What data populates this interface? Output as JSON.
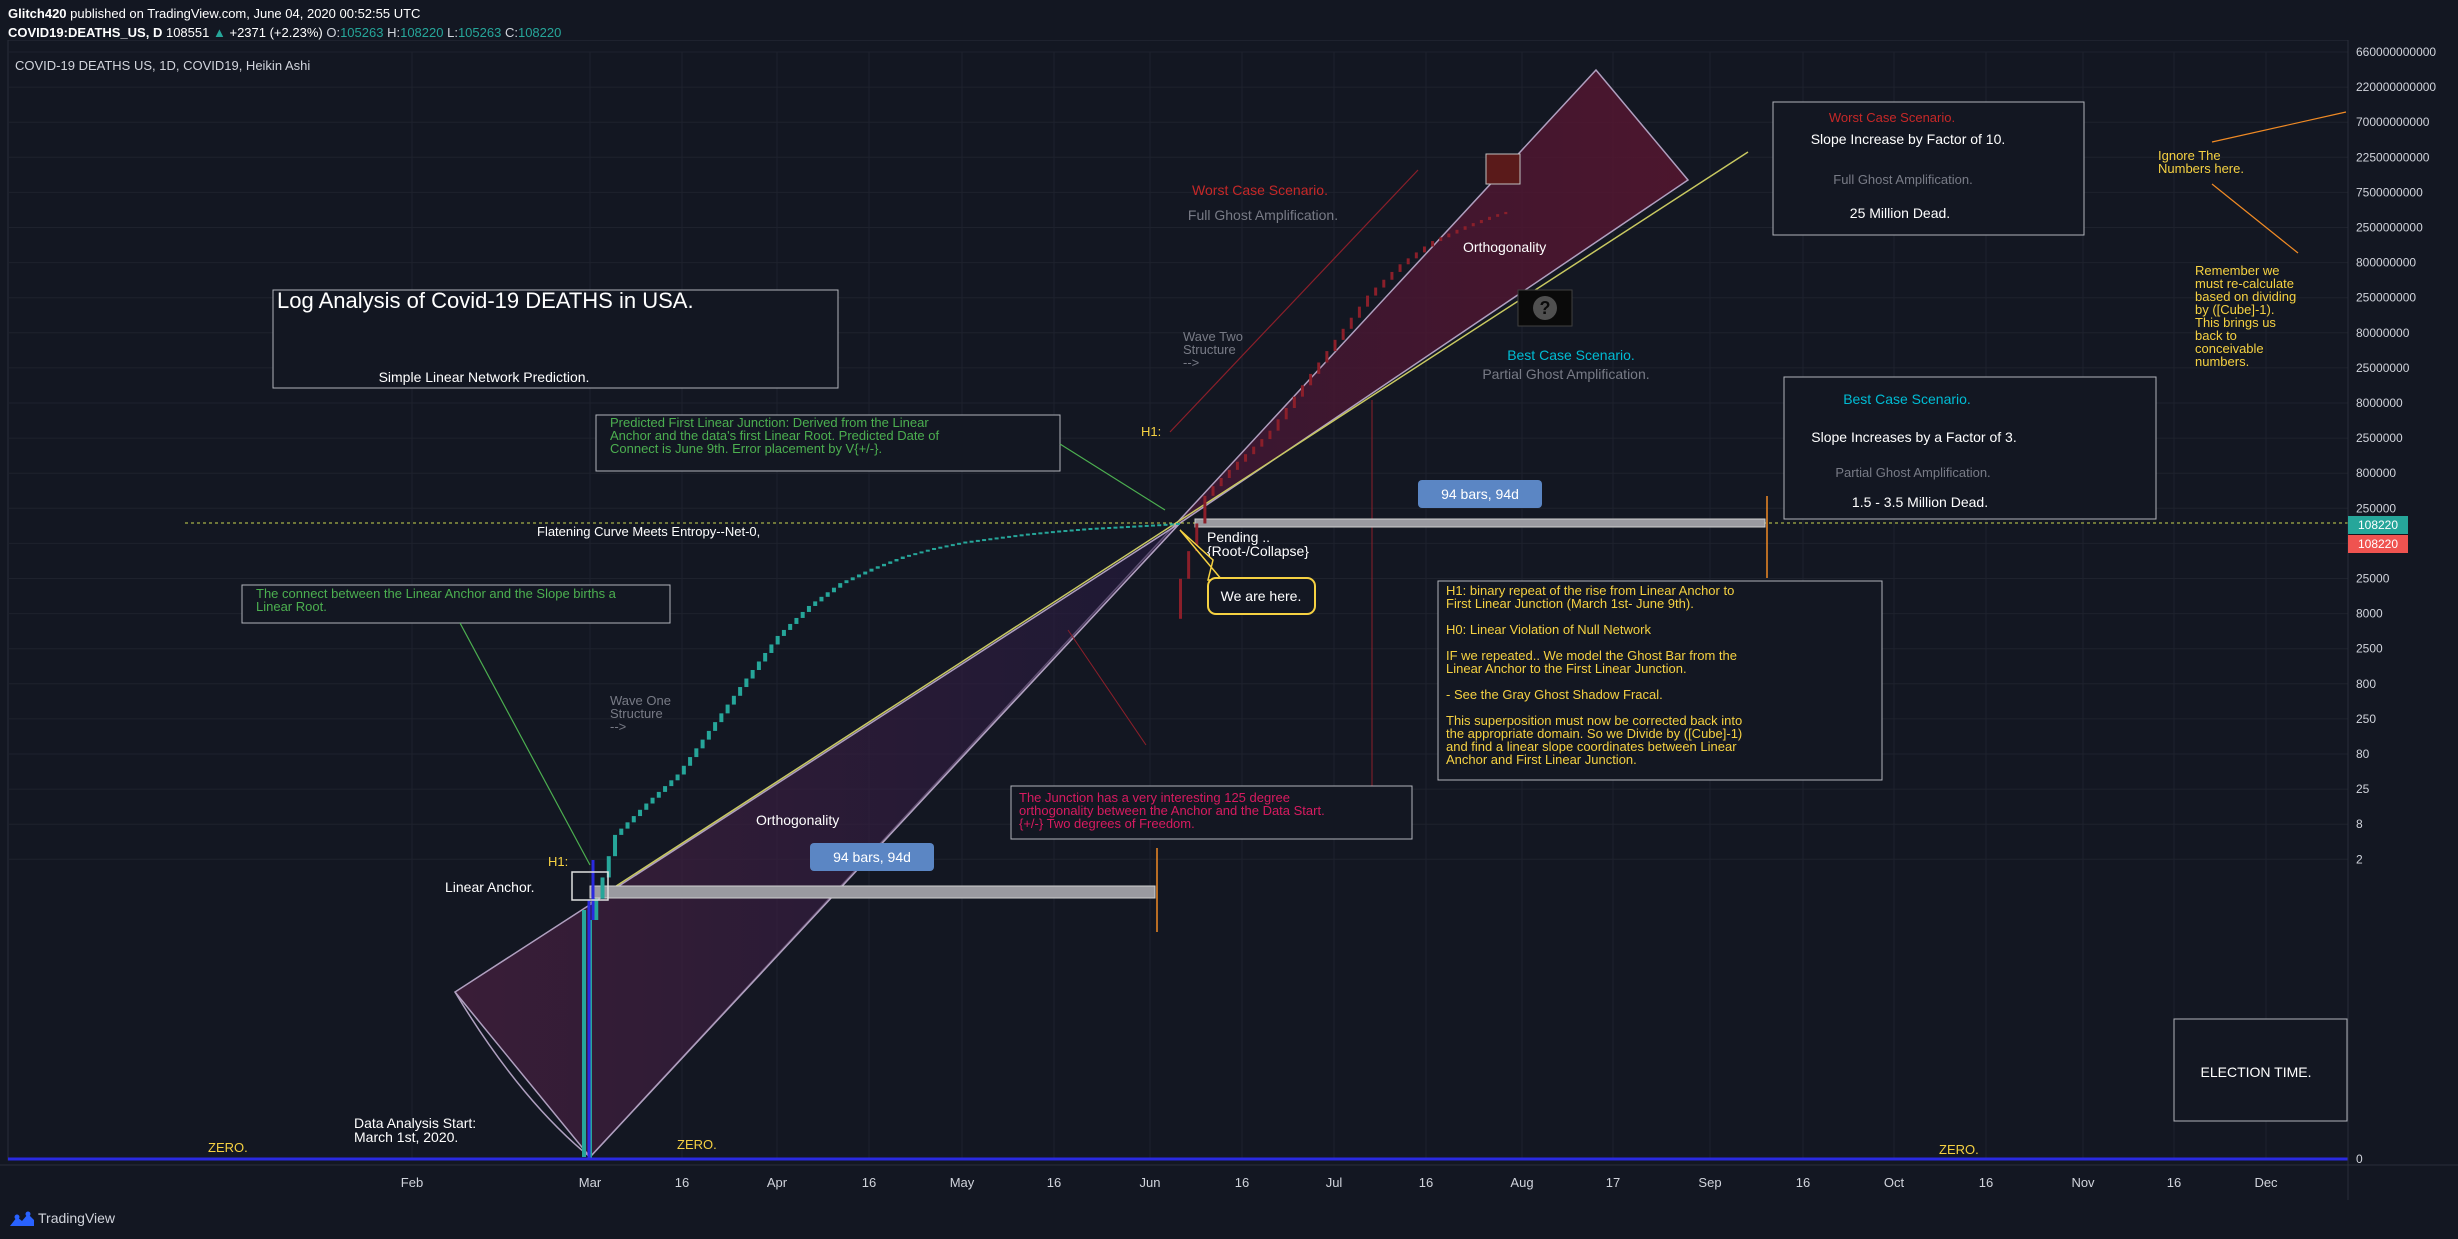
{
  "header": {
    "publisher": "Glitch420",
    "published_text": "published on TradingView.com, June 04, 2020 00:52:55 UTC",
    "symbol": "COVID19:DEATHS_US, D",
    "last": "108551",
    "change": "+2371 (+2.23%)",
    "o_label": "O:",
    "o_value": "105263",
    "h_label": "H:",
    "h_value": "108220",
    "l_label": "L:",
    "l_value": "105263",
    "c_label": "C:",
    "c_value": "108220"
  },
  "footer": {
    "brand": "TradingView"
  },
  "chart_data": {
    "type": "candlestick",
    "chart_style": "Heikin Ashi",
    "legend_title": "COVID-19 DEATHS US, 1D, COVID19, Heikin Ashi",
    "y_scale": "log",
    "grid": true,
    "x_ticks": [
      "Feb",
      "Mar",
      "16",
      "Apr",
      "16",
      "May",
      "16",
      "Jun",
      "16",
      "Jul",
      "16",
      "Aug",
      "17",
      "Sep",
      "16",
      "Oct",
      "16",
      "Nov",
      "16",
      "Dec"
    ],
    "y_ticks": [
      "660000000000",
      "220000000000",
      "70000000000",
      "22500000000",
      "7500000000",
      "2500000000",
      "800000000",
      "250000000",
      "80000000",
      "25000000",
      "8000000",
      "2500000",
      "800000",
      "250000",
      "80000",
      "25000",
      "8000",
      "2500",
      "800",
      "250",
      "80",
      "25",
      "8",
      "2",
      "0"
    ],
    "price_labels": {
      "current": "108220",
      "secondary": "108220"
    },
    "series": [
      {
        "description": "daily cumulative deaths",
        "x": [
          "2020-03-01",
          "2020-03-05",
          "2020-03-10",
          "2020-03-15",
          "2020-03-20",
          "2020-03-25",
          "2020-03-31",
          "2020-04-05",
          "2020-04-10",
          "2020-04-15",
          "2020-04-20",
          "2020-04-25",
          "2020-04-30",
          "2020-05-05",
          "2020-05-10",
          "2020-05-15",
          "2020-05-20",
          "2020-05-25",
          "2020-05-31",
          "2020-06-03"
        ],
        "y": [
          1,
          12,
          30,
          70,
          250,
          900,
          4000,
          9600,
          18700,
          28500,
          40600,
          52200,
          63000,
          71000,
          79500,
          86900,
          93500,
          98200,
          104400,
          108220
        ]
      }
    ],
    "annotations": {
      "title_box": {
        "title": "Log Analysis of Covid-19 DEATHS in USA.",
        "subtitle": "Simple Linear Network Prediction."
      },
      "predicted_junction": "Predicted First Linear Junction: Derived from the Linear Anchor and the data's first Linear Root. Predicted Date of Connect is June 9th. Error placement by V{+/-}.",
      "connect_note": "The connect between the Linear Anchor and the Slope births a Linear Root.",
      "flattening": "Flatening Curve Meets Entropy--Net-0,",
      "wave_one": "Wave One Structure -->",
      "wave_two": "Wave Two Structure -->",
      "linear_anchor": "Linear Anchor.",
      "h1_label": "H1:",
      "orthogonality": "Orthogonality",
      "bars_label": "94 bars, 94d",
      "pending": "Pending .. {Root-/Collapse}",
      "we_are_here": "We are here.",
      "junction_note": "The Junction has a very interesting 125 degree orthogonality between the Anchor and the Data Start. {+/-} Two degrees of Freedom.",
      "worst_case_title": "Worst Case Scenario.",
      "full_ghost": "Full Ghost Amplification.",
      "best_case_title": "Best Case Scenario.",
      "partial_ghost": "Partial Ghost Amplification.",
      "question_mark": "?",
      "worst_box": {
        "title": "Worst Case Scenario.",
        "line1": "Slope Increase by Factor of 10.",
        "line2": "Full Ghost Amplification.",
        "line3": "25 Million Dead."
      },
      "best_box": {
        "title": "Best Case Scenario.",
        "line1": "Slope Increases by a Factor of 3.",
        "line2": "Partial Ghost Amplification.",
        "line3": "1.5 - 3.5 Million Dead."
      },
      "hypothesis_box": [
        "H1: binary repeat of the rise from Linear Anchor to",
        "First Linear Junction (March 1st- June 9th).",
        "",
        "H0: Linear Violation of Null Network",
        "",
        "IF we repeated.. We model the Ghost Bar from the",
        "Linear Anchor to the First Linear Junction.",
        "",
        "- See the Gray Ghost Shadow Fracal.",
        "",
        "This superposition must now be corrected back into",
        "the appropriate domain. So we Divide by ([Cube]-1)",
        "and find a linear slope coordinates between Linear",
        "Anchor and First Linear Junction."
      ],
      "ignore_numbers": [
        "Ignore The",
        "Numbers here."
      ],
      "recalculate": [
        "Remember we",
        "must re-calculate",
        "based on dividing",
        "by ([Cube]-1).",
        "This brings us",
        "back to",
        "conceivable",
        "numbers."
      ],
      "election": "ELECTION TIME.",
      "data_start": [
        "Data Analysis Start:",
        "March 1st, 2020."
      ],
      "zero_label": "ZERO."
    }
  }
}
